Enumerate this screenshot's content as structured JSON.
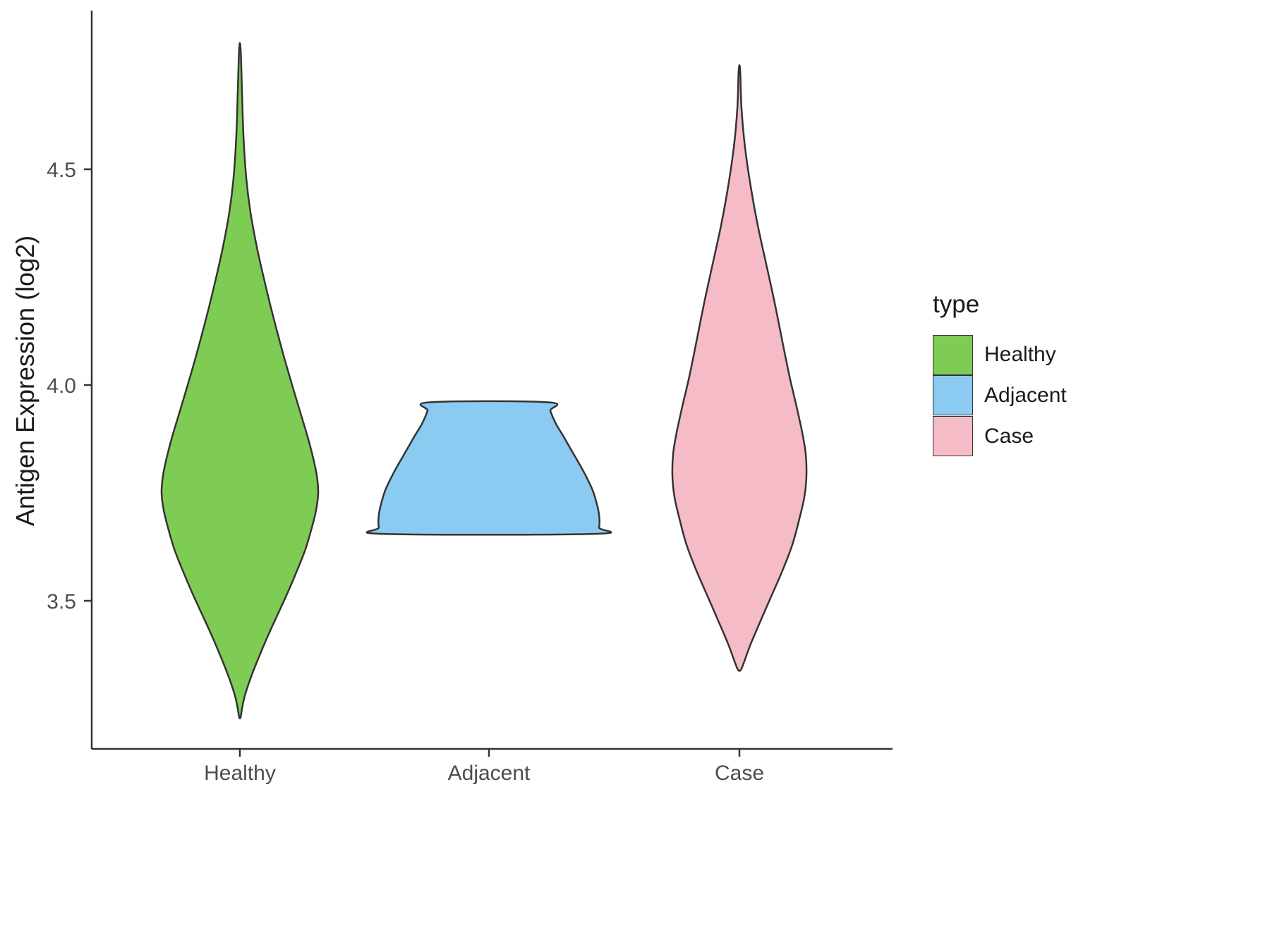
{
  "chart_data": {
    "type": "violin",
    "title": "",
    "xlabel": "",
    "ylabel": "Antigen Expression (log2)",
    "categories": [
      "Healthy",
      "Adjacent",
      "Case"
    ],
    "y_axis": {
      "ticks": [
        3.5,
        4.0,
        4.5
      ],
      "tick_labels": [
        "3.5",
        "4.0",
        "4.5"
      ],
      "ylim": [
        3.15,
        4.85
      ],
      "grid": false
    },
    "legend": {
      "title": "type",
      "position": "right",
      "items": [
        {
          "label": "Healthy",
          "color": "#7FCC54"
        },
        {
          "label": "Adjacent",
          "color": "#8BCBF1"
        },
        {
          "label": "Case",
          "color": "#F5BBC6"
        }
      ]
    },
    "outline_color": "#333333",
    "series": [
      {
        "name": "Healthy",
        "color": "#7FCC54",
        "min": 3.23,
        "max": 4.78,
        "peak": 3.78,
        "profile": [
          [
            4.78,
            1
          ],
          [
            4.68,
            3
          ],
          [
            4.58,
            5
          ],
          [
            4.48,
            9
          ],
          [
            4.4,
            15
          ],
          [
            4.32,
            24
          ],
          [
            4.24,
            35
          ],
          [
            4.16,
            47
          ],
          [
            4.08,
            60
          ],
          [
            4.0,
            74
          ],
          [
            3.94,
            85
          ],
          [
            3.88,
            96
          ],
          [
            3.83,
            104
          ],
          [
            3.79,
            109
          ],
          [
            3.75,
            111
          ],
          [
            3.71,
            108
          ],
          [
            3.67,
            102
          ],
          [
            3.62,
            93
          ],
          [
            3.57,
            81
          ],
          [
            3.52,
            68
          ],
          [
            3.47,
            54
          ],
          [
            3.42,
            40
          ],
          [
            3.37,
            27
          ],
          [
            3.32,
            15
          ],
          [
            3.28,
            7
          ],
          [
            3.25,
            3
          ],
          [
            3.23,
            1
          ]
        ]
      },
      {
        "name": "Adjacent",
        "color": "#8BCBF1",
        "min": 3.655,
        "max": 3.96,
        "peak": 3.7,
        "profile": [
          [
            3.96,
            84
          ],
          [
            3.94,
            87
          ],
          [
            3.91,
            95
          ],
          [
            3.88,
            106
          ],
          [
            3.84,
            120
          ],
          [
            3.8,
            134
          ],
          [
            3.76,
            146
          ],
          [
            3.73,
            152
          ],
          [
            3.7,
            156
          ],
          [
            3.67,
            156
          ],
          [
            3.655,
            149
          ]
        ]
      },
      {
        "name": "Case",
        "color": "#F5BBC6",
        "min": 3.34,
        "max": 4.73,
        "peak": 3.79,
        "profile": [
          [
            4.73,
            1
          ],
          [
            4.64,
            3
          ],
          [
            4.55,
            8
          ],
          [
            4.46,
            16
          ],
          [
            4.37,
            26
          ],
          [
            4.28,
            38
          ],
          [
            4.19,
            50
          ],
          [
            4.1,
            61
          ],
          [
            4.02,
            71
          ],
          [
            3.95,
            81
          ],
          [
            3.89,
            89
          ],
          [
            3.84,
            94
          ],
          [
            3.79,
            95
          ],
          [
            3.74,
            92
          ],
          [
            3.69,
            85
          ],
          [
            3.63,
            75
          ],
          [
            3.57,
            61
          ],
          [
            3.51,
            45
          ],
          [
            3.45,
            29
          ],
          [
            3.4,
            16
          ],
          [
            3.36,
            7
          ],
          [
            3.34,
            2
          ]
        ]
      }
    ]
  }
}
